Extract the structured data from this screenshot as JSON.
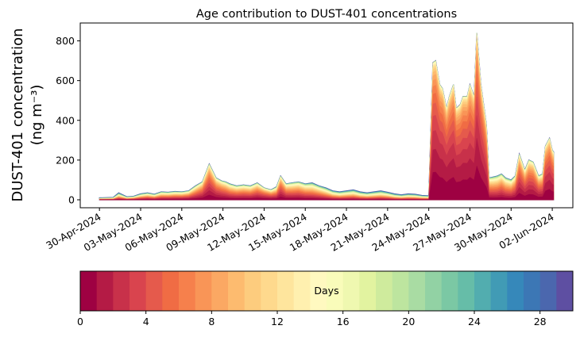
{
  "chart_data": {
    "type": "area",
    "title": "Age contribution to DUST-401 concentrations",
    "ylabel_line1": "DUST-401 concentration",
    "ylabel_line2": "(ng m⁻³)",
    "xlabel": "",
    "ylim": [
      -40,
      890
    ],
    "yticks": [
      0,
      200,
      400,
      600,
      800
    ],
    "xlim_day": [
      -2.4,
      33.5
    ],
    "xticks": [
      {
        "day": -1,
        "label": "30-Apr-2024"
      },
      {
        "day": 2,
        "label": "03-May-2024"
      },
      {
        "day": 5,
        "label": "06-May-2024"
      },
      {
        "day": 8,
        "label": "09-May-2024"
      },
      {
        "day": 11,
        "label": "12-May-2024"
      },
      {
        "day": 14,
        "label": "15-May-2024"
      },
      {
        "day": 17,
        "label": "18-May-2024"
      },
      {
        "day": 20,
        "label": "21-May-2024"
      },
      {
        "day": 23,
        "label": "24-May-2024"
      },
      {
        "day": 26,
        "label": "27-May-2024"
      },
      {
        "day": 29,
        "label": "30-May-2024"
      },
      {
        "day": 32,
        "label": "02-Jun-2024"
      }
    ],
    "x_day": [
      -1.0,
      0.0,
      0.4,
      1.0,
      1.5,
      2.0,
      2.5,
      3.0,
      3.5,
      4.0,
      4.5,
      5.0,
      5.5,
      6.0,
      6.5,
      7.0,
      7.5,
      7.9,
      8.2,
      8.5,
      9.0,
      9.5,
      10.0,
      10.5,
      11.0,
      11.5,
      11.9,
      12.2,
      12.6,
      13.0,
      13.5,
      14.0,
      14.5,
      15.0,
      15.5,
      16.0,
      16.5,
      17.0,
      17.5,
      18.0,
      18.5,
      19.0,
      19.5,
      20.0,
      20.5,
      21.0,
      21.5,
      22.0,
      22.5,
      23.0,
      23.3,
      23.5,
      23.8,
      24.0,
      24.3,
      24.5,
      24.8,
      25.0,
      25.3,
      25.5,
      25.8,
      26.0,
      26.3,
      26.5,
      26.8,
      27.0,
      27.2,
      27.4,
      27.7,
      28.0,
      28.3,
      28.6,
      29.0,
      29.3,
      29.6,
      30.0,
      30.3,
      30.6,
      31.0,
      31.3,
      31.5,
      31.8,
      32.0,
      32.1
    ],
    "total": [
      10,
      12,
      35,
      15,
      18,
      30,
      35,
      28,
      40,
      38,
      42,
      40,
      45,
      70,
      90,
      180,
      110,
      95,
      90,
      80,
      70,
      75,
      70,
      85,
      60,
      50,
      65,
      120,
      80,
      85,
      90,
      80,
      85,
      70,
      60,
      45,
      40,
      45,
      50,
      40,
      35,
      40,
      45,
      38,
      30,
      25,
      30,
      28,
      22,
      20,
      690,
      700,
      580,
      560,
      460,
      520,
      580,
      460,
      480,
      520,
      520,
      580,
      520,
      840,
      580,
      480,
      380,
      110,
      115,
      120,
      130,
      110,
      100,
      120,
      230,
      150,
      200,
      190,
      120,
      130,
      270,
      310,
      250,
      240
    ],
    "fresh_fraction": [
      0.03,
      0.05,
      0.08,
      0.08,
      0.1,
      0.12,
      0.15,
      0.15,
      0.18,
      0.2,
      0.2,
      0.22,
      0.25,
      0.3,
      0.4,
      0.55,
      0.45,
      0.4,
      0.35,
      0.3,
      0.3,
      0.3,
      0.3,
      0.35,
      0.4,
      0.35,
      0.3,
      0.5,
      0.35,
      0.3,
      0.3,
      0.25,
      0.2,
      0.2,
      0.15,
      0.12,
      0.1,
      0.1,
      0.1,
      0.08,
      0.08,
      0.08,
      0.08,
      0.08,
      0.05,
      0.05,
      0.05,
      0.05,
      0.05,
      0.05,
      0.9,
      0.9,
      0.88,
      0.88,
      0.85,
      0.87,
      0.88,
      0.85,
      0.85,
      0.87,
      0.86,
      0.88,
      0.85,
      0.92,
      0.85,
      0.8,
      0.72,
      0.35,
      0.3,
      0.3,
      0.35,
      0.3,
      0.3,
      0.4,
      0.6,
      0.5,
      0.55,
      0.55,
      0.45,
      0.45,
      0.7,
      0.75,
      0.72,
      0.72
    ],
    "n_layers": 30,
    "colorbar": {
      "label": "Days",
      "ticks": [
        0,
        4,
        8,
        12,
        16,
        20,
        24,
        28
      ],
      "range": [
        0,
        30
      ],
      "colors": [
        "#9e0142",
        "#b41b45",
        "#c8314a",
        "#d9444e",
        "#e55a4c",
        "#f06c44",
        "#f6804c",
        "#f99557",
        "#fba863",
        "#fdbb6f",
        "#fdcc7e",
        "#fed98d",
        "#fee59d",
        "#fff0af",
        "#fff9c0",
        "#f9fcba",
        "#eff8b0",
        "#e2f3a0",
        "#cfeb9d",
        "#bde59f",
        "#a9dca3",
        "#92d2a4",
        "#7bc8a4",
        "#66bda8",
        "#52adaf",
        "#419bb5",
        "#3688ba",
        "#3c77b5",
        "#4b67ae",
        "#5e4fa2"
      ]
    }
  }
}
